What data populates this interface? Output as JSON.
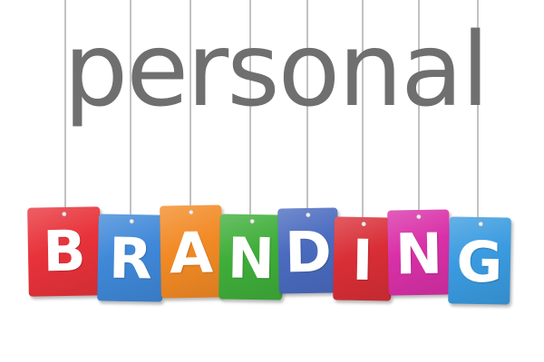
{
  "headline": {
    "text": "personal"
  },
  "tags": [
    {
      "letter": "B",
      "color": "#e8323a"
    },
    {
      "letter": "R",
      "color": "#3f88d8"
    },
    {
      "letter": "A",
      "color": "#f28a25"
    },
    {
      "letter": "N",
      "color": "#3fae3a"
    },
    {
      "letter": "D",
      "color": "#4a6bbf"
    },
    {
      "letter": "I",
      "color": "#d92e36"
    },
    {
      "letter": "N",
      "color": "#d930a8"
    },
    {
      "letter": "G",
      "color": "#3a9be0"
    }
  ]
}
